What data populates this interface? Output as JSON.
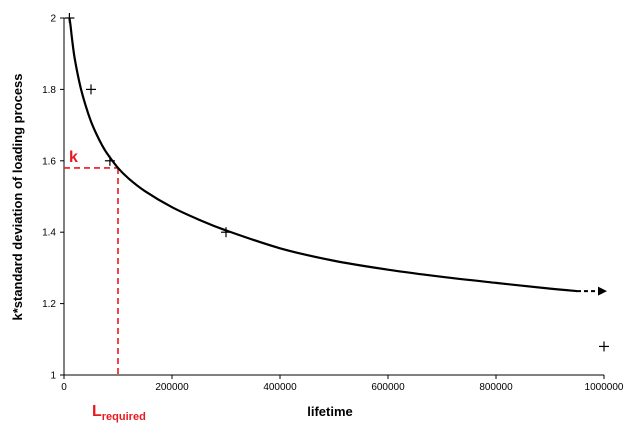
{
  "chart_data": {
    "type": "line",
    "xlabel": "lifetime",
    "ylabel": "k*standard deviation of loading process",
    "xlim": [
      0,
      1000000
    ],
    "ylim": [
      1,
      2
    ],
    "x_ticks": [
      0,
      200000,
      400000,
      600000,
      800000,
      1000000
    ],
    "x_tick_labels": [
      "0",
      "200000",
      "400000",
      "600000",
      "800000",
      "1000000"
    ],
    "y_ticks": [
      1,
      1.2,
      1.4,
      1.6,
      1.8,
      2
    ],
    "y_tick_labels": [
      "1",
      "1.2",
      "1.4",
      "1.6",
      "1.8",
      "2"
    ],
    "grid": false,
    "series": [
      {
        "kind": "curve",
        "color": "#000000",
        "arrow_at_end": true,
        "x": [
          10000,
          12000,
          15000,
          20000,
          30000,
          40000,
          50000,
          60000,
          70000,
          80000,
          100000,
          120000,
          150000,
          200000,
          250000,
          300000,
          400000,
          500000,
          600000,
          700000,
          800000,
          900000,
          950000
        ],
        "y": [
          2.0,
          1.98,
          1.94,
          1.885,
          1.81,
          1.755,
          1.71,
          1.675,
          1.645,
          1.62,
          1.58,
          1.55,
          1.515,
          1.47,
          1.435,
          1.405,
          1.355,
          1.32,
          1.295,
          1.275,
          1.258,
          1.242,
          1.235
        ]
      },
      {
        "kind": "markers",
        "marker": "+",
        "color": "#000000",
        "x": [
          10000,
          50000,
          85000,
          300000,
          1000000
        ],
        "y": [
          2.0,
          1.8,
          1.6,
          1.4,
          1.08
        ]
      }
    ],
    "annotations": [
      {
        "kind": "dashed-line",
        "color": "#e8191e",
        "x": [
          0,
          100000
        ],
        "y": [
          1.58,
          1.58
        ]
      },
      {
        "kind": "dashed-line",
        "color": "#e8191e",
        "x": [
          100000,
          100000
        ],
        "y": [
          1.58,
          1.0
        ]
      },
      {
        "kind": "label",
        "text": "k",
        "color": "#e8191e"
      },
      {
        "kind": "label",
        "text": "L",
        "subscript": "required",
        "color": "#e8191e"
      }
    ]
  }
}
